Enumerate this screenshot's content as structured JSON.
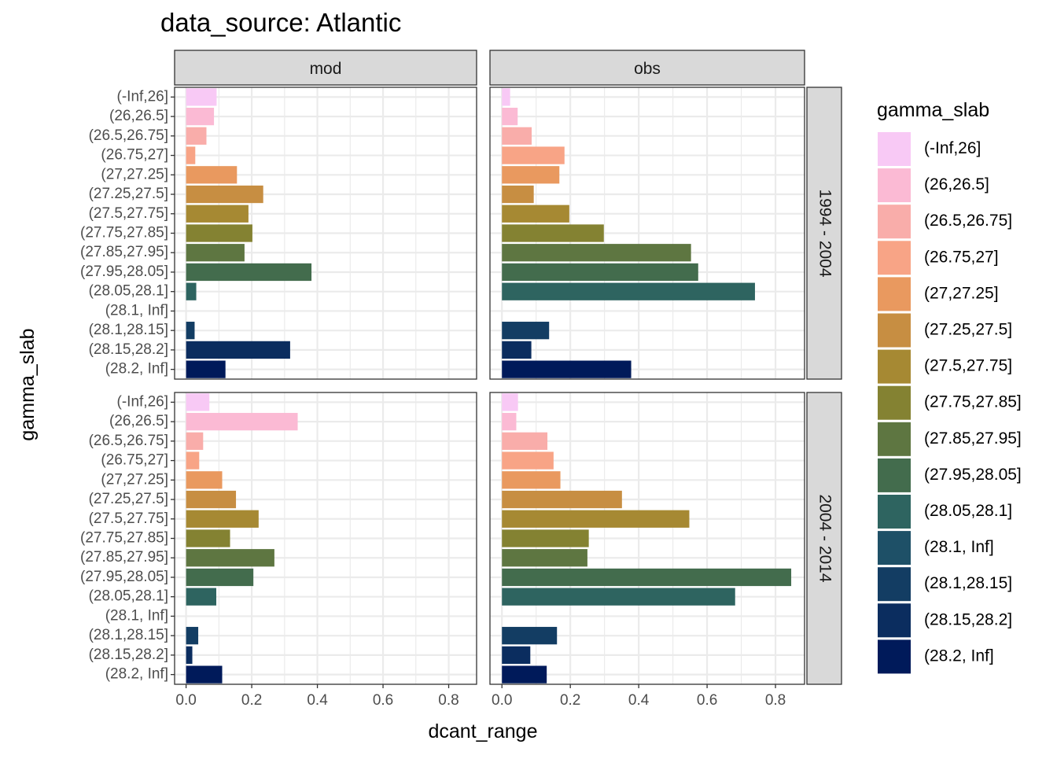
{
  "chart_data": {
    "type": "bar",
    "orientation": "horizontal",
    "title": "data_source: Atlantic",
    "xlabel": "dcant_range",
    "ylabel": "gamma_slab",
    "xlim": [
      -0.035,
      0.885
    ],
    "xticks": [
      0.0,
      0.2,
      0.4,
      0.6,
      0.8
    ],
    "xtick_labels": [
      "0.0",
      "0.2",
      "0.4",
      "0.6",
      "0.8"
    ],
    "grid": true,
    "legend_title": "gamma_slab",
    "legend_position": "right",
    "column_facets": [
      "mod",
      "obs"
    ],
    "row_facets": [
      "1994 - 2004",
      "2004 - 2014"
    ],
    "categories": [
      "(-Inf,26]",
      "(26,26.5]",
      "(26.5,26.75]",
      "(26.75,27]",
      "(27,27.25]",
      "(27.25,27.5]",
      "(27.5,27.75]",
      "(27.75,27.85]",
      "(27.85,27.95]",
      "(27.95,28.05]",
      "(28.05,28.1]",
      "(28.1, Inf]",
      "(28.1,28.15]",
      "(28.15,28.2]",
      "(28.2, Inf]"
    ],
    "colors": [
      "#f8c9f5",
      "#fbbad4",
      "#f9adaa",
      "#f8a486",
      "#e9995f",
      "#c78e42",
      "#a68933",
      "#848232",
      "#5e7641",
      "#436c4d",
      "#2e6460",
      "#1e5067",
      "#133d63",
      "#0b2d5f",
      "#001a5a"
    ],
    "panels": [
      {
        "col": "mod",
        "row": "1994 - 2004",
        "values": [
          0.093,
          0.085,
          0.062,
          0.028,
          0.155,
          0.235,
          0.19,
          0.202,
          0.178,
          0.382,
          0.031,
          null,
          0.026,
          0.317,
          0.12
        ]
      },
      {
        "col": "obs",
        "row": "1994 - 2004",
        "values": [
          0.024,
          0.046,
          0.087,
          0.183,
          0.168,
          0.093,
          0.197,
          0.298,
          0.553,
          0.574,
          0.74,
          null,
          0.138,
          0.086,
          0.378
        ]
      },
      {
        "col": "mod",
        "row": "2004 - 2014",
        "values": [
          0.071,
          0.34,
          0.052,
          0.04,
          0.11,
          0.152,
          0.221,
          0.134,
          0.269,
          0.205,
          0.092,
          null,
          0.037,
          0.019,
          0.11
        ]
      },
      {
        "col": "obs",
        "row": "2004 - 2014",
        "values": [
          0.047,
          0.042,
          0.133,
          0.151,
          0.171,
          0.351,
          0.548,
          0.254,
          0.25,
          0.846,
          0.682,
          null,
          0.161,
          0.083,
          0.131
        ]
      }
    ]
  }
}
